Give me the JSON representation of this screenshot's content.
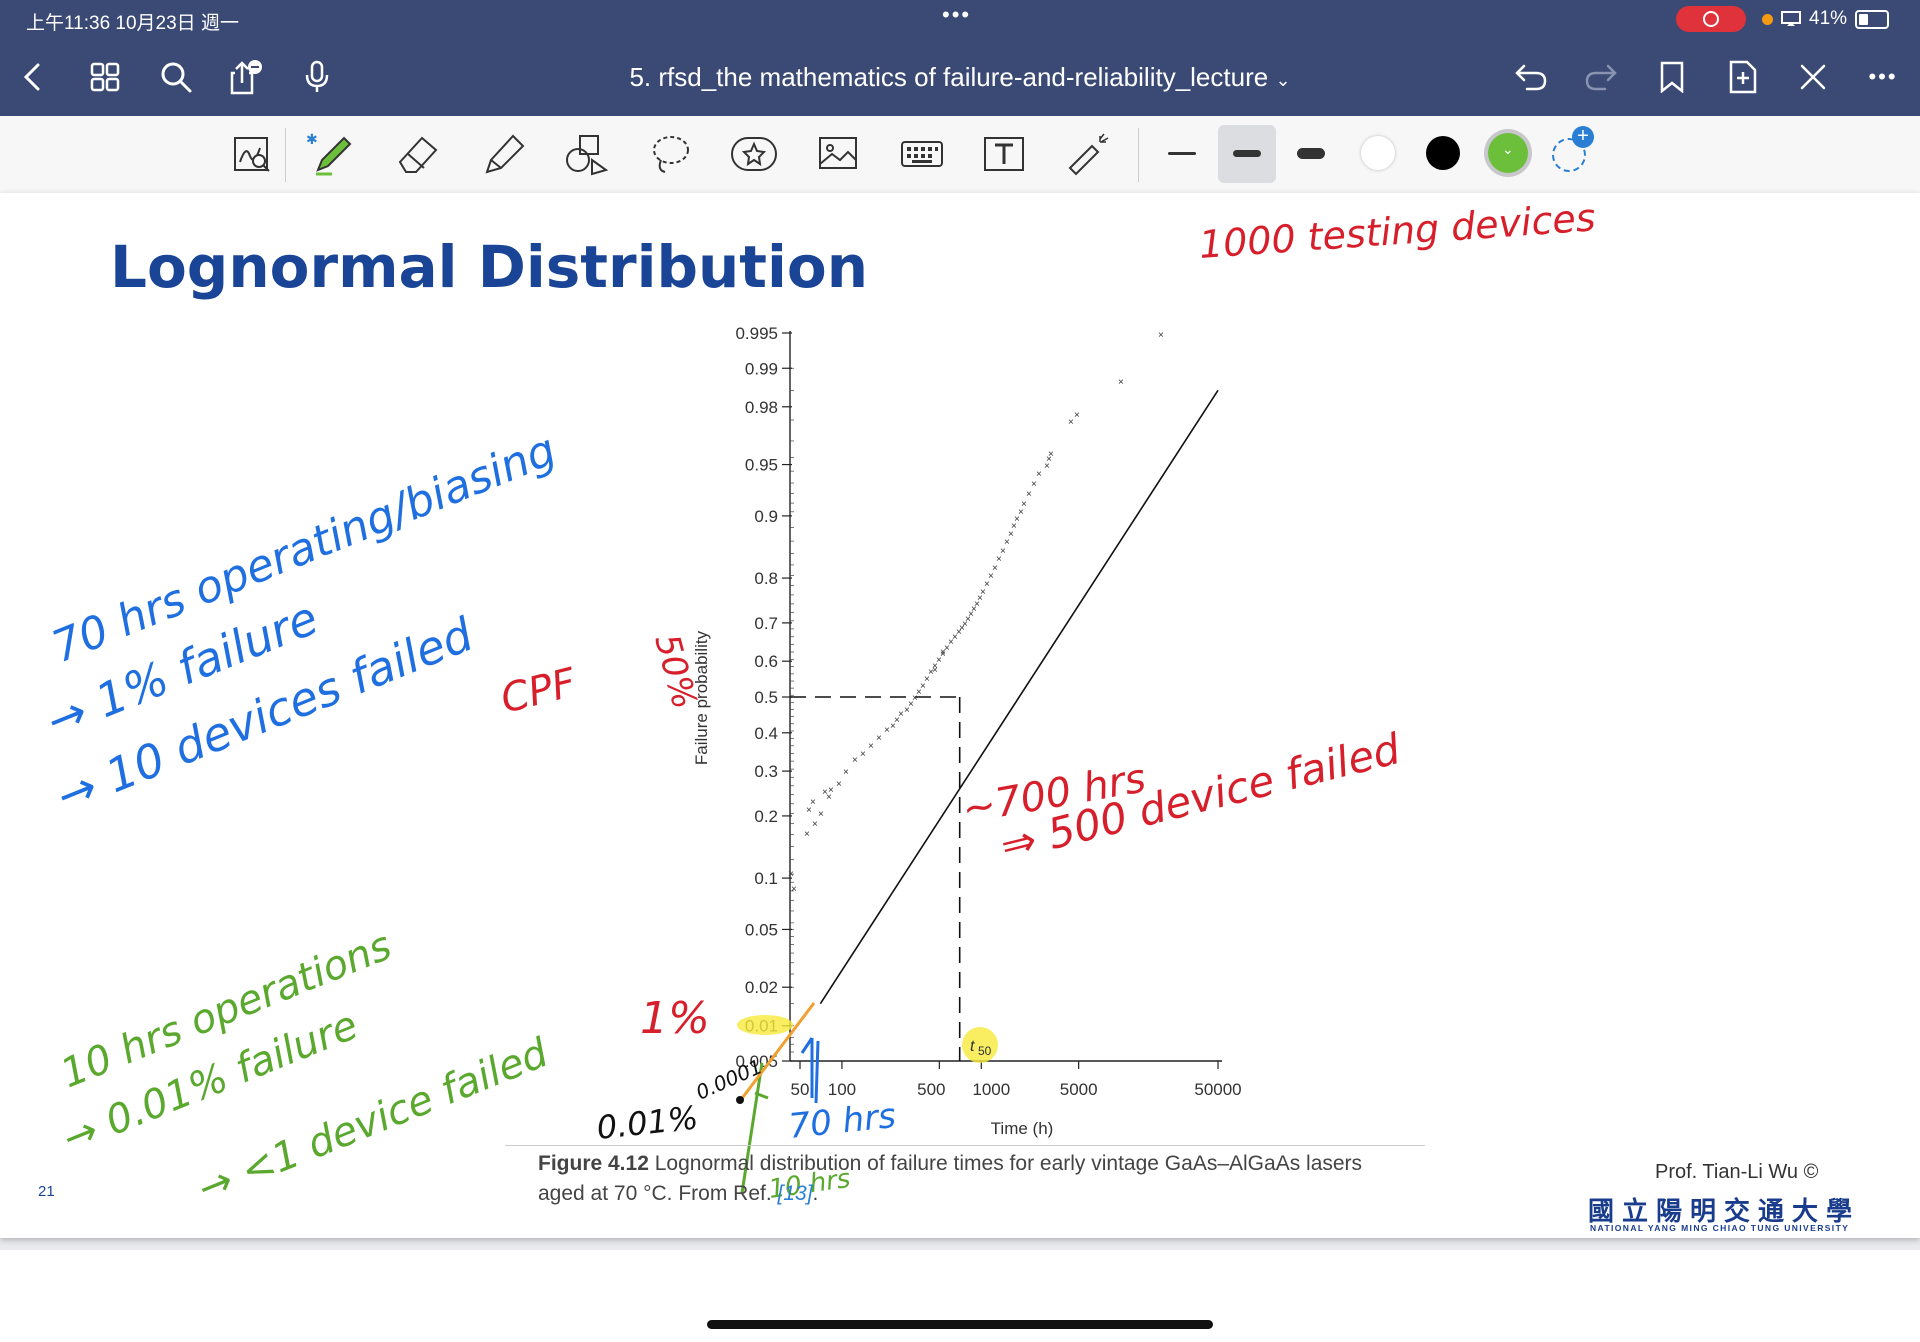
{
  "status": {
    "time": "上午11:36   10月23日 週一",
    "battery": "41%"
  },
  "nav": {
    "title": "5. rfsd_the mathematics of failure-and-reliability_lecture"
  },
  "toolbar": {
    "tools": [
      "zoom-lasso-icon",
      "pen-icon",
      "eraser-icon",
      "highlighter-icon",
      "shapes-icon",
      "lasso-icon",
      "sticker-icon",
      "image-icon",
      "keyboard-icon",
      "text-box-icon",
      "laser-pointer-icon"
    ],
    "colors": {
      "white": "#ffffff",
      "black": "#000000",
      "green": "#6bbf3a"
    }
  },
  "slide": {
    "title": "Lognormal Distribution",
    "page_number": "21",
    "caption_label": "Figure 4.12",
    "caption_text": " Lognormal distribution of failure times for early vintage GaAs–AlGaAs lasers aged at 70 °C. From Ref. ",
    "caption_ref": "[13]",
    "caption_end": ".",
    "prof": "Prof. Tian-Li Wu ©",
    "university_cn": "國立陽明交通大學",
    "university_en": "NATIONAL YANG MING CHIAO TUNG UNIVERSITY"
  },
  "chart_data": {
    "type": "scatter",
    "x_scale": "log",
    "y_scale": "lognormal-probability",
    "xlabel": "Time (h)",
    "ylabel": "Failure probability",
    "x_ticks": [
      "50",
      "100",
      "500",
      "1000",
      "5000",
      "50000"
    ],
    "y_ticks": [
      "0.995",
      "0.99",
      "0.98",
      "0.95",
      "0.9",
      "0.8",
      "0.7",
      "0.6",
      "0.5",
      "0.4",
      "0.3",
      "0.2",
      "0.1",
      "0.05",
      "0.02",
      "0.01",
      "0.005"
    ],
    "t50_label": "t",
    "t50_sub": "50",
    "fit_line": [
      [
        70,
        0.015
      ],
      [
        50000,
        0.985
      ]
    ],
    "median": {
      "x": 700,
      "y": 0.5
    }
  },
  "annotations": {
    "red": [
      "1000 testing devices",
      "CPF",
      "50%",
      "1%",
      "~700 hrs",
      "⇒ 500 device failed"
    ],
    "blue": [
      "70 hrs operating/biasing",
      "→ 1% failure",
      "→ 10 devices failed",
      "70 hrs"
    ],
    "green": [
      "10 hrs operations",
      "→ 0.01% failure",
      "→ <1 device failed",
      "10 hrs"
    ],
    "black": [
      "0.01%",
      "0.0001"
    ]
  }
}
